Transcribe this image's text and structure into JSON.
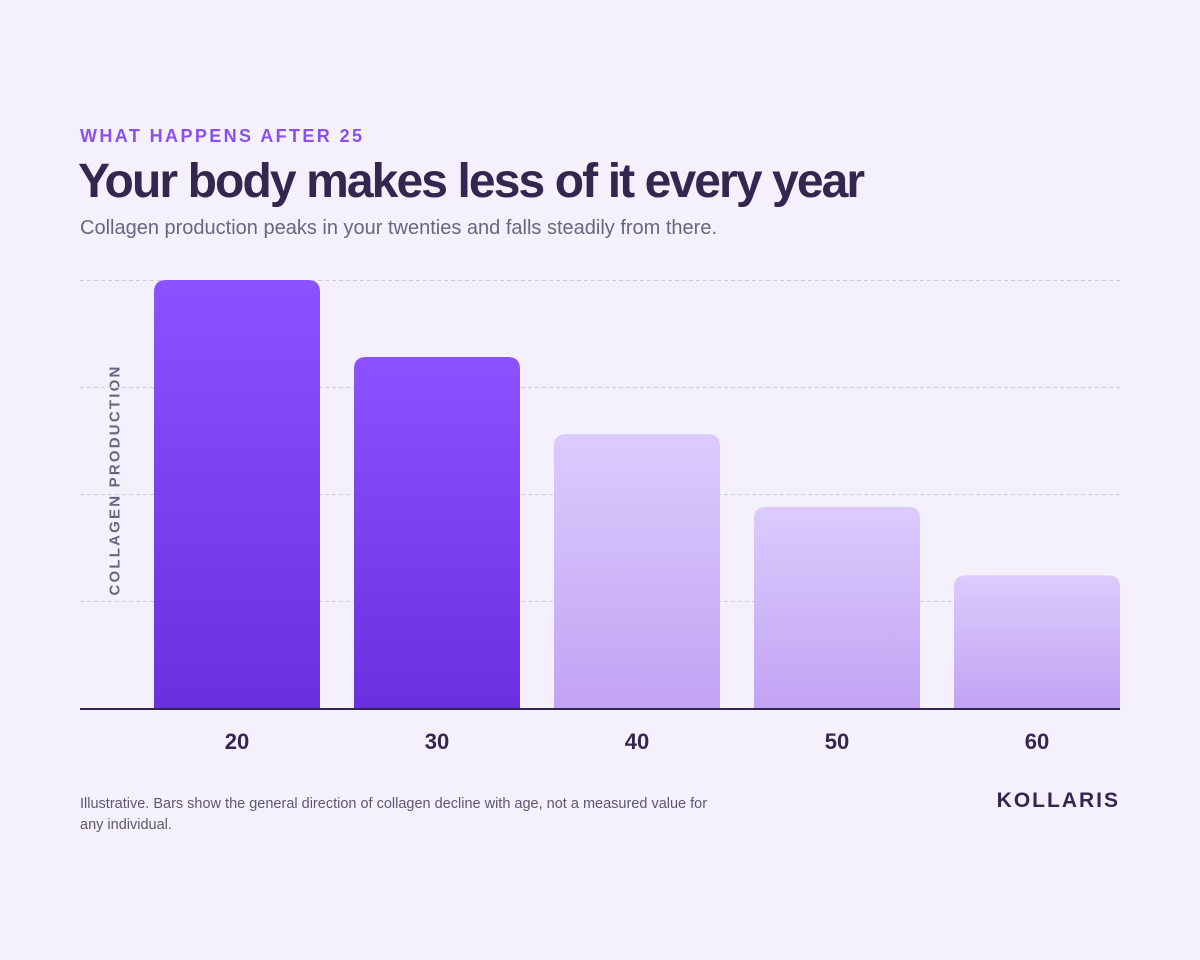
{
  "eyebrow": "WHAT HAPPENS AFTER 25",
  "title": "Your body makes less of it every year",
  "subtitle": "Collagen production peaks in your twenties and falls steadily from there.",
  "footnote": "Illustrative. Bars show the general direction of collagen decline with age, not a measured value for any individual.",
  "brand": "KOLLARIS",
  "colors": {
    "highlight_top": "#8c52ff",
    "highlight_bottom": "#6a30df",
    "muted_top": "#dccbfd",
    "muted_bottom": "#c2a3f4",
    "axis": "#33274f",
    "gridline": "#d2cbe8",
    "tick_label": "#33274f"
  },
  "chart_data": {
    "type": "bar",
    "categories": [
      "20",
      "30",
      "40",
      "50",
      "60"
    ],
    "values": [
      100,
      82,
      64,
      47,
      31
    ],
    "highlighted": [
      true,
      true,
      false,
      false,
      false
    ],
    "xlabel": "",
    "ylabel": "COLLAGEN PRODUCTION",
    "ylim": [
      0,
      100
    ],
    "grid": true,
    "gridlines": [
      25,
      50,
      75,
      100
    ],
    "y_tick_labels_shown": false,
    "legend": "none"
  }
}
